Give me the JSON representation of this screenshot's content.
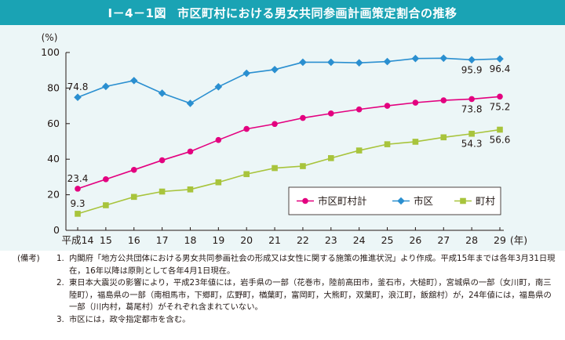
{
  "figure": {
    "number": "I－4－1図",
    "title": "市区町村における男女共同参画計画策定割合の推移"
  },
  "notes": {
    "tag": "(備考)",
    "items": [
      {
        "num": "1.",
        "text": "内閣府「地方公共団体における男女共同参画社会の形成又は女性に関する施策の推進状況」より作成。平成15年までは各年3月31日現在，16年以降は原則として各年4月1日現在。"
      },
      {
        "num": "2.",
        "text": "東日本大震災の影響により，平成23年値には，岩手県の一部（花巻市，陸前高田市，釜石市，大槌町），宮城県の一部（女川町，南三陸町），福島県の一部（南相馬市，下郷町，広野町，楢葉町，富岡町，大熊町，双葉町，浪江町，飯舘村）が，24年値には，福島県の一部（川内村，葛尾村）がそれぞれ含まれていない。"
      },
      {
        "num": "3.",
        "text": "市区には，政令指定都市を含む。"
      }
    ]
  },
  "chart_data": {
    "type": "line",
    "title": "",
    "ylabel": "(%)",
    "xlabel": "(年)",
    "ylim": [
      0,
      100
    ],
    "yticks": [
      0,
      20,
      40,
      60,
      80,
      100
    ],
    "categories": [
      "平成14",
      "15",
      "16",
      "17",
      "18",
      "19",
      "20",
      "21",
      "22",
      "23",
      "24",
      "25",
      "26",
      "27",
      "28",
      "29"
    ],
    "grid": false,
    "legend_position": "bottom-right",
    "series": [
      {
        "name": "市区町村計",
        "color": "#e3007f",
        "marker": "circle",
        "values": [
          23.4,
          28.7,
          34.0,
          39.4,
          44.3,
          50.8,
          57.0,
          59.8,
          63.2,
          65.7,
          68.0,
          70.0,
          71.8,
          73.1,
          73.8,
          75.2
        ],
        "labels": [
          {
            "index": 0,
            "text": "23.4",
            "pos": "above"
          },
          {
            "index": 14,
            "text": "73.8",
            "pos": "below"
          },
          {
            "index": 15,
            "text": "75.2",
            "pos": "below"
          }
        ]
      },
      {
        "name": "市区",
        "color": "#2a8fd0",
        "marker": "diamond",
        "values": [
          74.8,
          80.9,
          84.2,
          77.1,
          71.4,
          80.7,
          88.3,
          90.4,
          94.5,
          94.5,
          94.2,
          94.9,
          96.6,
          96.8,
          95.9,
          96.4
        ],
        "labels": [
          {
            "index": 0,
            "text": "74.8",
            "pos": "above"
          },
          {
            "index": 14,
            "text": "95.9",
            "pos": "below"
          },
          {
            "index": 15,
            "text": "96.4",
            "pos": "below"
          }
        ]
      },
      {
        "name": "町村",
        "color": "#a8c43c",
        "marker": "square",
        "values": [
          9.3,
          14.1,
          18.8,
          21.8,
          23.0,
          27.0,
          31.6,
          35.0,
          36.1,
          40.6,
          44.9,
          48.4,
          49.8,
          52.3,
          54.3,
          56.6
        ],
        "labels": [
          {
            "index": 0,
            "text": "9.3",
            "pos": "above"
          },
          {
            "index": 14,
            "text": "54.3",
            "pos": "below"
          },
          {
            "index": 15,
            "text": "56.6",
            "pos": "below"
          }
        ]
      }
    ]
  }
}
